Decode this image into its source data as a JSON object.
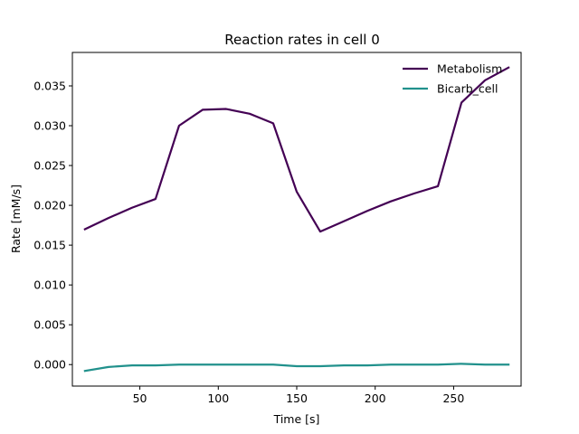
{
  "chart_data": {
    "type": "line",
    "title": "Reaction rates in cell 0",
    "xlabel": "Time [s]",
    "ylabel": "Rate [mM/s]",
    "xlim": [
      7,
      293
    ],
    "ylim": [
      -0.0027,
      0.0392
    ],
    "xticks": [
      50,
      100,
      150,
      200,
      250
    ],
    "xtick_labels": [
      "50",
      "100",
      "150",
      "200",
      "250"
    ],
    "yticks": [
      0.0,
      0.005,
      0.01,
      0.015,
      0.02,
      0.025,
      0.03,
      0.035
    ],
    "ytick_labels": [
      "0.000",
      "0.005",
      "0.010",
      "0.015",
      "0.020",
      "0.025",
      "0.030",
      "0.035"
    ],
    "grid": false,
    "legend_position": "top-right",
    "x": [
      15,
      30,
      45,
      60,
      75,
      90,
      105,
      120,
      135,
      150,
      165,
      180,
      195,
      210,
      225,
      240,
      255,
      270,
      285
    ],
    "series": [
      {
        "name": "Metabolism",
        "color": "#440154",
        "values": [
          0.017,
          0.0184,
          0.0197,
          0.0208,
          0.03,
          0.032,
          0.0321,
          0.0315,
          0.0303,
          0.0217,
          0.0167,
          0.018,
          0.0193,
          0.0205,
          0.0215,
          0.0224,
          0.0329,
          0.0357,
          0.0373
        ]
      },
      {
        "name": "Bicarb_cell",
        "color": "#21918c",
        "values": [
          -0.0008,
          -0.0003,
          -0.0001,
          -0.0001,
          0.0,
          0.0,
          0.0,
          0.0,
          0.0,
          -0.0002,
          -0.0002,
          -0.0001,
          -0.0001,
          0.0,
          0.0,
          0.0,
          0.0001,
          0.0,
          0.0
        ]
      }
    ]
  }
}
